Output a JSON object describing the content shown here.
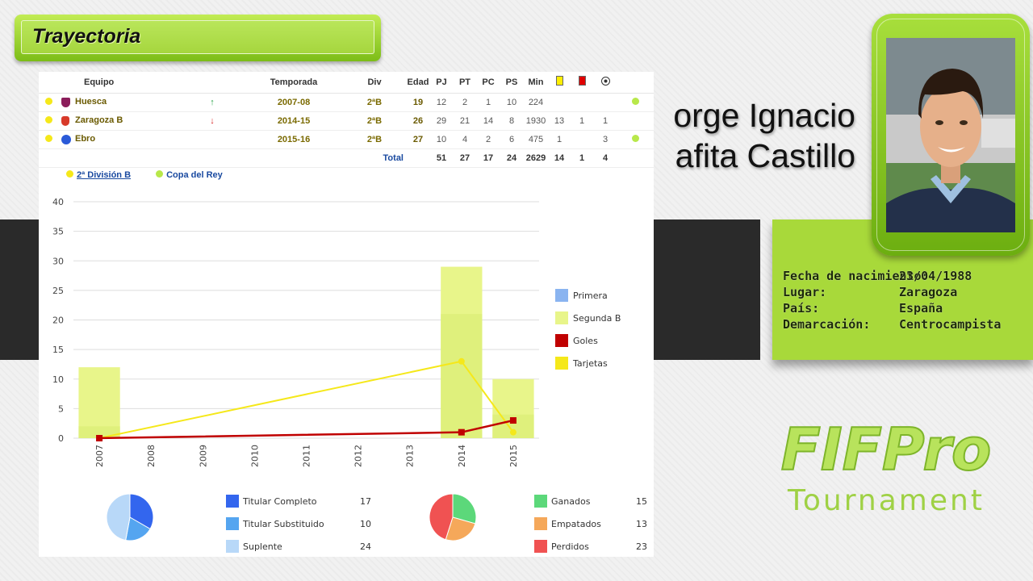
{
  "section_title": "Trayectoria",
  "player_name": [
    "Jorge Ignacio",
    "Ezquerra Rafita Castillo"
  ],
  "player_name_visible": [
    "orge Ignacio",
    "afita Castillo"
  ],
  "info": [
    {
      "label": "Fecha de nacimiento:",
      "value": "23/04/1988"
    },
    {
      "label": "Lugar:",
      "value": "Zaragoza"
    },
    {
      "label": "País:",
      "value": "España"
    },
    {
      "label": "Demarcación:",
      "value": "Centrocampista"
    }
  ],
  "logo": {
    "brand": "FIFPro",
    "sub": "Tournament"
  },
  "table": {
    "headers": [
      "Equipo",
      "Temporada",
      "Div",
      "Edad",
      "PJ",
      "PT",
      "PC",
      "PS",
      "Min"
    ],
    "rows": [
      {
        "team": "Huesca",
        "arrow": "↑",
        "season": "2007-08",
        "div": "2ªB",
        "age": "19",
        "pj": "12",
        "pt": "2",
        "pc": "1",
        "ps": "10",
        "min": "224",
        "yellow": "",
        "red": "",
        "goals": ""
      },
      {
        "team": "Zaragoza B",
        "arrow": "↓",
        "season": "2014-15",
        "div": "2ªB",
        "age": "26",
        "pj": "29",
        "pt": "21",
        "pc": "14",
        "ps": "8",
        "min": "1930",
        "yellow": "13",
        "red": "1",
        "goals": "1"
      },
      {
        "team": "Ebro",
        "arrow": "",
        "season": "2015-16",
        "div": "2ªB",
        "age": "27",
        "pj": "10",
        "pt": "4",
        "pc": "2",
        "ps": "6",
        "min": "475",
        "yellow": "1",
        "red": "",
        "goals": "3"
      }
    ],
    "total": {
      "label": "Total",
      "pj": "51",
      "pt": "27",
      "pc": "17",
      "ps": "24",
      "min": "2629",
      "yellow": "14",
      "red": "1",
      "goals": "4"
    }
  },
  "legend_top": [
    "2ª División B",
    "Copa del Rey"
  ],
  "chart_data": {
    "type": "bar",
    "x": [
      2007,
      2008,
      2009,
      2010,
      2011,
      2012,
      2013,
      2014,
      2015
    ],
    "ylim": [
      0,
      40
    ],
    "yticks": [
      0,
      5,
      10,
      15,
      20,
      25,
      30,
      35,
      40
    ],
    "series": [
      {
        "name": "Primera",
        "type": "bar",
        "values": [
          0,
          0,
          0,
          0,
          0,
          0,
          0,
          0,
          0
        ]
      },
      {
        "name": "Segunda B",
        "type": "bar",
        "values": [
          12,
          0,
          0,
          0,
          0,
          0,
          0,
          29,
          10
        ],
        "inner_values": [
          2,
          0,
          0,
          0,
          0,
          0,
          0,
          21,
          4
        ]
      },
      {
        "name": "Goles",
        "type": "line",
        "points": [
          [
            2007,
            0
          ],
          [
            2014,
            1
          ],
          [
            2015,
            3
          ]
        ]
      },
      {
        "name": "Tarjetas",
        "type": "line",
        "points": [
          [
            2007,
            0
          ],
          [
            2014,
            13
          ],
          [
            2015,
            1
          ]
        ]
      }
    ],
    "colors": {
      "Primera": "#8ab4f0",
      "Segunda B": "#e8f58a",
      "Goles": "#c00000",
      "Tarjetas": "#f5e81a"
    }
  },
  "pie1": {
    "items": [
      {
        "label": "Titular Completo",
        "value": 17,
        "color": "#3366ee"
      },
      {
        "label": "Titular Substituido",
        "value": 10,
        "color": "#55a5f0"
      },
      {
        "label": "Suplente",
        "value": 24,
        "color": "#b8d8f8"
      }
    ]
  },
  "pie2": {
    "items": [
      {
        "label": "Ganados",
        "value": 15,
        "color": "#5cd87a"
      },
      {
        "label": "Empatados",
        "value": 13,
        "color": "#f5a85a"
      },
      {
        "label": "Perdidos",
        "value": 23,
        "color": "#f05252"
      }
    ]
  }
}
